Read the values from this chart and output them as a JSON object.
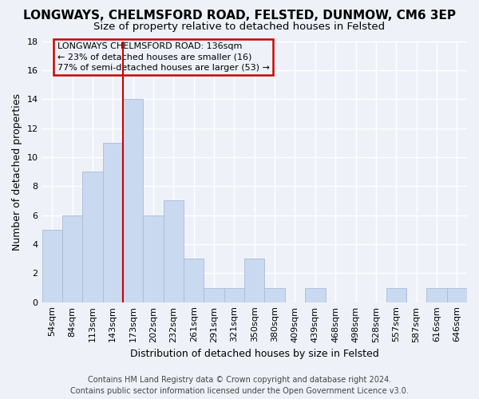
{
  "title": "LONGWAYS, CHELMSFORD ROAD, FELSTED, DUNMOW, CM6 3EP",
  "subtitle": "Size of property relative to detached houses in Felsted",
  "xlabel": "Distribution of detached houses by size in Felsted",
  "ylabel": "Number of detached properties",
  "categories": [
    "54sqm",
    "84sqm",
    "113sqm",
    "143sqm",
    "173sqm",
    "202sqm",
    "232sqm",
    "261sqm",
    "291sqm",
    "321sqm",
    "350sqm",
    "380sqm",
    "409sqm",
    "439sqm",
    "468sqm",
    "498sqm",
    "528sqm",
    "557sqm",
    "587sqm",
    "616sqm",
    "646sqm"
  ],
  "values": [
    5,
    6,
    9,
    11,
    14,
    6,
    7,
    3,
    1,
    1,
    3,
    1,
    0,
    1,
    0,
    0,
    0,
    1,
    0,
    1,
    1
  ],
  "bar_color": "#c9d9f0",
  "bar_edge_color": "#a8bcd8",
  "vline_index": 3,
  "vline_color": "#cc0000",
  "annotation_text": "LONGWAYS CHELMSFORD ROAD: 136sqm\n← 23% of detached houses are smaller (16)\n77% of semi-detached houses are larger (53) →",
  "annotation_box_color": "#cc0000",
  "ylim": [
    0,
    18
  ],
  "yticks": [
    0,
    2,
    4,
    6,
    8,
    10,
    12,
    14,
    16,
    18
  ],
  "footer": "Contains HM Land Registry data © Crown copyright and database right 2024.\nContains public sector information licensed under the Open Government Licence v3.0.",
  "background_color": "#eef2f8",
  "grid_color": "#ffffff",
  "title_fontsize": 11,
  "subtitle_fontsize": 9.5,
  "axis_label_fontsize": 9,
  "tick_fontsize": 8,
  "annotation_fontsize": 8,
  "footer_fontsize": 7
}
